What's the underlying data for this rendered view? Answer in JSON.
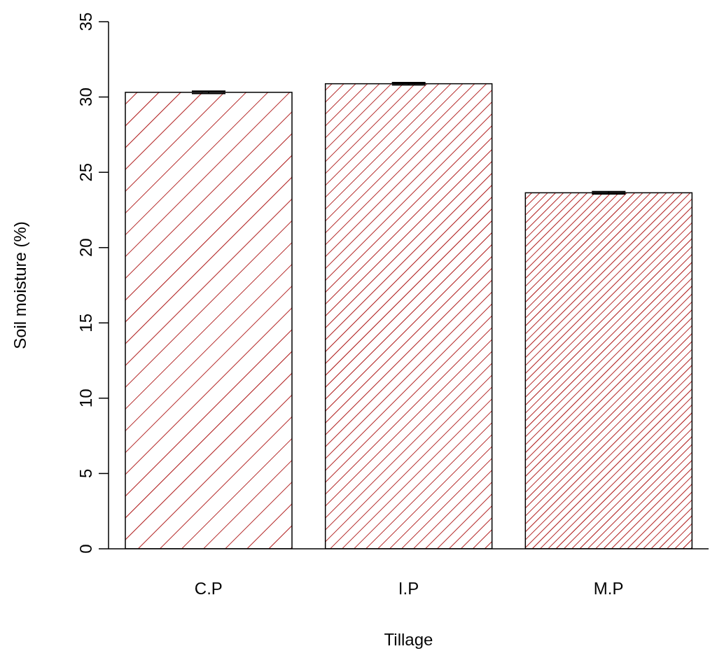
{
  "chart_data": {
    "type": "bar",
    "xlabel": "Tillage",
    "ylabel": "Soil moisture (%)",
    "categories": [
      "C.P",
      "I.P",
      "M.P"
    ],
    "values": [
      30.31,
      30.88,
      23.64
    ],
    "errors": [
      0.08,
      0.08,
      0.08
    ],
    "color": "#b22222",
    "ylim": [
      0,
      35
    ],
    "yticks": [
      0,
      5,
      10,
      15,
      20,
      25,
      30,
      35
    ],
    "grid": false,
    "legend": false
  }
}
